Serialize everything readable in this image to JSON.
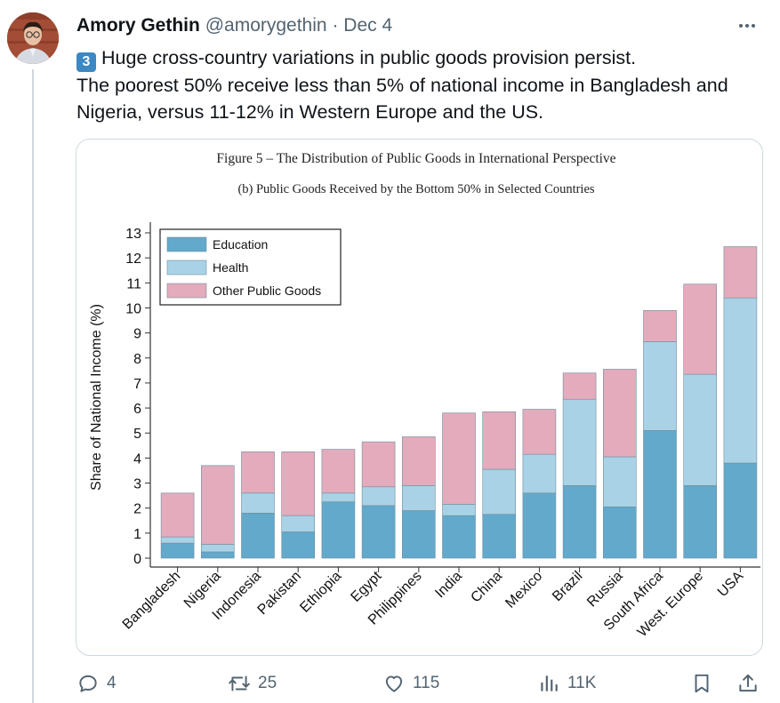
{
  "tweet": {
    "author_name": "Amory Gethin",
    "handle": "@amorygethin",
    "separator": "·",
    "date": "Dec 4",
    "number_badge": "3",
    "text_line1": "Huge cross-country variations in public goods provision persist.",
    "text_line2": "The poorest 50% receive less than 5% of national income in Bangladesh and Nigeria, versus 11-12% in Western Europe and the US.",
    "more_icon": "more-horizontal-icon"
  },
  "actions": {
    "reply_count": "4",
    "retweet_count": "25",
    "like_count": "115",
    "views_count": "11K"
  },
  "colors": {
    "education": "#62a9cb",
    "health": "#a9d2e6",
    "other": "#e3abbc",
    "link_blue": "#3b88c3",
    "muted": "#536471"
  },
  "chart_data": {
    "type": "bar",
    "stacked": true,
    "title": "Figure 5 – The Distribution of Public Goods in International Perspective",
    "subtitle": "(b) Public Goods Received by the Bottom 50% in Selected Countries",
    "xlabel": "",
    "ylabel": "Share of National Income (%)",
    "ylim": [
      0,
      13
    ],
    "yticks": [
      "0",
      "1",
      "2",
      "3",
      "4",
      "5",
      "6",
      "7",
      "8",
      "9",
      "10",
      "11",
      "12",
      "13"
    ],
    "grid": false,
    "legend_position": "top-left",
    "categories": [
      "Bangladesh",
      "Nigeria",
      "Indonesia",
      "Pakistan",
      "Ethiopia",
      "Egypt",
      "Philippines",
      "India",
      "China",
      "Mexico",
      "Brazil",
      "Russia",
      "South Africa",
      "West. Europe",
      "USA"
    ],
    "series": [
      {
        "name": "Education",
        "values": [
          0.6,
          0.25,
          1.8,
          1.05,
          2.25,
          2.1,
          1.9,
          1.7,
          1.75,
          2.6,
          2.9,
          2.05,
          5.1,
          2.9,
          3.8
        ]
      },
      {
        "name": "Health",
        "values": [
          0.25,
          0.3,
          0.8,
          0.65,
          0.35,
          0.75,
          1.0,
          0.45,
          1.8,
          1.55,
          3.45,
          2.0,
          3.55,
          4.45,
          6.6
        ]
      },
      {
        "name": "Other Public Goods",
        "values": [
          1.75,
          3.15,
          1.65,
          2.55,
          1.75,
          1.8,
          1.95,
          3.65,
          2.3,
          1.8,
          1.05,
          3.5,
          1.25,
          3.6,
          2.05
        ]
      }
    ]
  }
}
